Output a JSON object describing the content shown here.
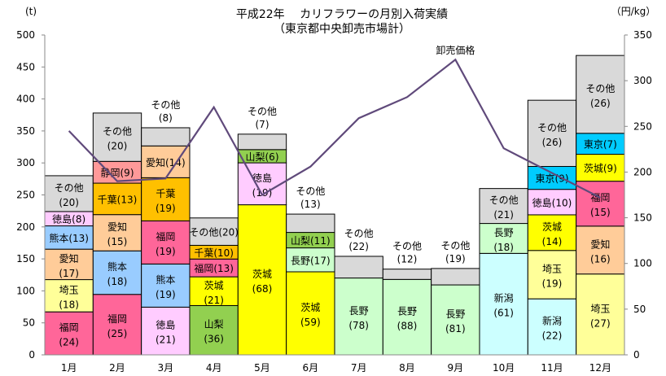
{
  "chart_data": {
    "type": "bar",
    "subtype": "stacked-bar-with-line",
    "title": "平成22年　 カリフラワーの月別入荷実績",
    "subtitle": "（東京都中央卸売市場計）",
    "ylabel_left": "(t)",
    "ylabel_right": "（円/kg）",
    "ylim_left": [
      0,
      500
    ],
    "yticks_left": [
      0,
      50,
      100,
      150,
      200,
      250,
      300,
      350,
      400,
      450,
      500
    ],
    "ylim_right": [
      0,
      350
    ],
    "yticks_right": [
      0,
      50,
      100,
      150,
      200,
      250,
      300,
      350
    ],
    "categories": [
      "1月",
      "2月",
      "3月",
      "4月",
      "5月",
      "6月",
      "7月",
      "8月",
      "9月",
      "10月",
      "11月",
      "12月"
    ],
    "totals_t": [
      280,
      378,
      355,
      214,
      345,
      220,
      154,
      134,
      135,
      260,
      398,
      468
    ],
    "segment_note": "segment labels show share (%) of monthly total, stacked bottom to top",
    "segments": [
      [
        [
          "福岡",
          24
        ],
        [
          "埼玉",
          18
        ],
        [
          "愛知",
          17
        ],
        [
          "熊本",
          13
        ],
        [
          "徳島",
          8
        ],
        [
          "その他",
          20
        ]
      ],
      [
        [
          "福岡",
          25
        ],
        [
          "熊本",
          18
        ],
        [
          "愛知",
          15
        ],
        [
          "千葉",
          13
        ],
        [
          "静岡",
          9
        ],
        [
          "その他",
          20
        ]
      ],
      [
        [
          "徳島",
          21
        ],
        [
          "熊本",
          19
        ],
        [
          "福岡",
          19
        ],
        [
          "千葉",
          19
        ],
        [
          "愛知",
          14
        ],
        [
          "その他",
          8
        ]
      ],
      [
        [
          "山梨",
          36
        ],
        [
          "茨城",
          21
        ],
        [
          "福岡",
          13
        ],
        [
          "千葉",
          10
        ],
        [
          "その他",
          20
        ]
      ],
      [
        [
          "茨城",
          68
        ],
        [
          "徳島",
          19
        ],
        [
          "山梨",
          6
        ],
        [
          "その他",
          7
        ]
      ],
      [
        [
          "茨城",
          59
        ],
        [
          "長野",
          17
        ],
        [
          "山梨",
          11
        ],
        [
          "その他",
          13
        ]
      ],
      [
        [
          "長野",
          78
        ],
        [
          "その他",
          22
        ]
      ],
      [
        [
          "長野",
          88
        ],
        [
          "その他",
          12
        ]
      ],
      [
        [
          "長野",
          81
        ],
        [
          "その他",
          19
        ]
      ],
      [
        [
          "新潟",
          61
        ],
        [
          "長野",
          18
        ],
        [
          "その他",
          21
        ]
      ],
      [
        [
          "新潟",
          22
        ],
        [
          "埼玉",
          19
        ],
        [
          "茨城",
          14
        ],
        [
          "徳島",
          10
        ],
        [
          "東京",
          9
        ],
        [
          "その他",
          26
        ]
      ],
      [
        [
          "埼玉",
          27
        ],
        [
          "愛知",
          16
        ],
        [
          "福岡",
          15
        ],
        [
          "茨城",
          9
        ],
        [
          "東京",
          7
        ],
        [
          "その他",
          26
        ]
      ]
    ],
    "line": {
      "name": "卸売価格",
      "unit": "円/kg",
      "values": [
        245,
        190,
        193,
        271,
        175,
        206,
        259,
        282,
        323,
        226,
        199,
        172
      ],
      "color": "#604a7b"
    },
    "colors": {
      "福岡": "#ff6699",
      "埼玉": "#ffff99",
      "愛知": "#ffcc99",
      "熊本": "#99ccff",
      "徳島": "#ffccff",
      "その他": "#d9d9d9",
      "静岡": "#ff9999",
      "千葉": "#ffc000",
      "山梨": "#92d050",
      "茨城": "#ffff00",
      "長野": "#ccffcc",
      "新潟": "#ccffff",
      "東京": "#00ccff"
    }
  }
}
